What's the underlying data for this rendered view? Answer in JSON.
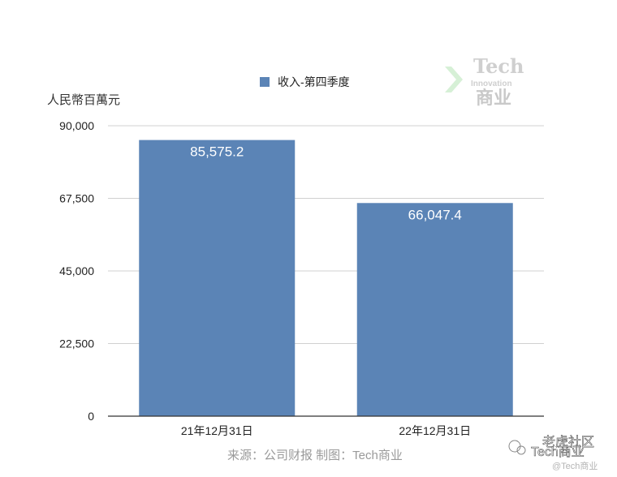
{
  "chart_data": {
    "type": "bar",
    "categories": [
      "21年12月31日",
      "22年12月31日"
    ],
    "series": [
      {
        "name": "收入-第四季度",
        "values": [
          85575.2,
          66047.4
        ],
        "color": "#5b84b6"
      }
    ],
    "data_labels": [
      "85,575.2",
      "66,047.4"
    ],
    "title": "",
    "xlabel": "",
    "ylabel": "人民幣百萬元",
    "ylim": [
      0,
      90000
    ],
    "yticks": [
      "0",
      "22,500",
      "45,000",
      "67,500",
      "90,000"
    ],
    "grid": true,
    "legend_position": "top-center"
  },
  "source_note": "来源：公司财报  制图：Tech商业",
  "logo": {
    "line1": "Tech",
    "line2": "Innovation",
    "line3": "商业"
  },
  "watermark": {
    "main": "Tech商业",
    "community": "老虎社区",
    "handle": "@Tech商业"
  },
  "colors": {
    "bar": "#5b84b6",
    "gridline": "#d0d0d0",
    "axis": "#333333"
  }
}
